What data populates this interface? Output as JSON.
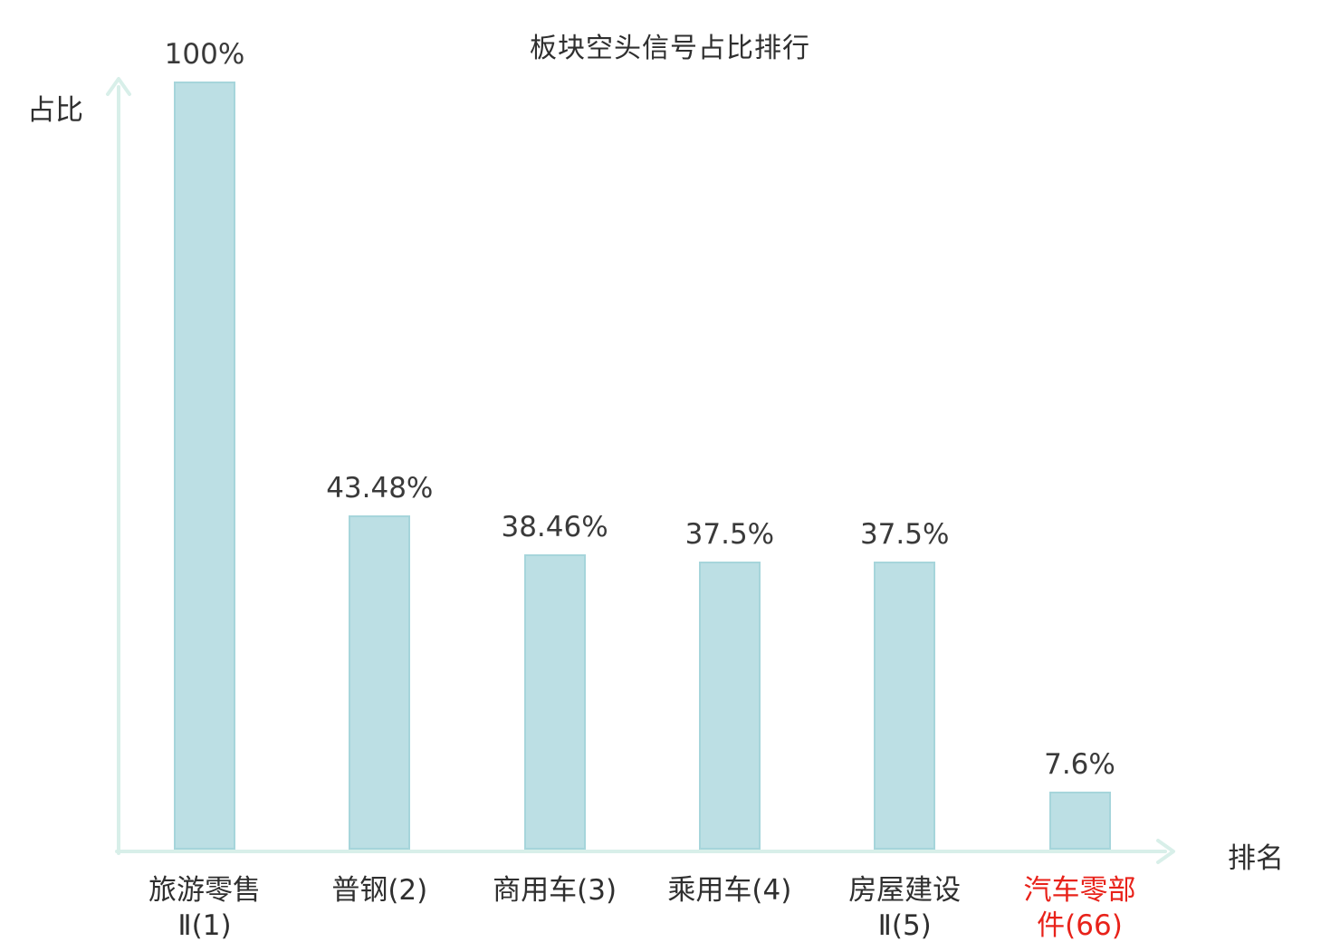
{
  "chart_data": {
    "type": "bar",
    "title": "板块空头信号占比排行",
    "xlabel": "排名",
    "ylabel": "占比",
    "ylim": [
      0,
      100
    ],
    "categories": [
      "旅游零售\nⅡ(1)",
      "普钢(2)",
      "商用车(3)",
      "乘用车(4)",
      "房屋建设\nⅡ(5)",
      "汽车零部\n件(66)"
    ],
    "values": [
      100,
      43.48,
      38.46,
      37.5,
      37.5,
      7.6
    ],
    "value_labels": [
      "100%",
      "43.48%",
      "38.46%",
      "37.5%",
      "37.5%",
      "7.6%"
    ],
    "highlight_index": 5,
    "grid": "off",
    "legend": "none",
    "bar_color": "#bcdfe4",
    "bar_border_color": "#a6d5db",
    "axis_color": "#d8efe9",
    "label_color": "#3a3a3a",
    "highlight_color": "#e8221a"
  }
}
